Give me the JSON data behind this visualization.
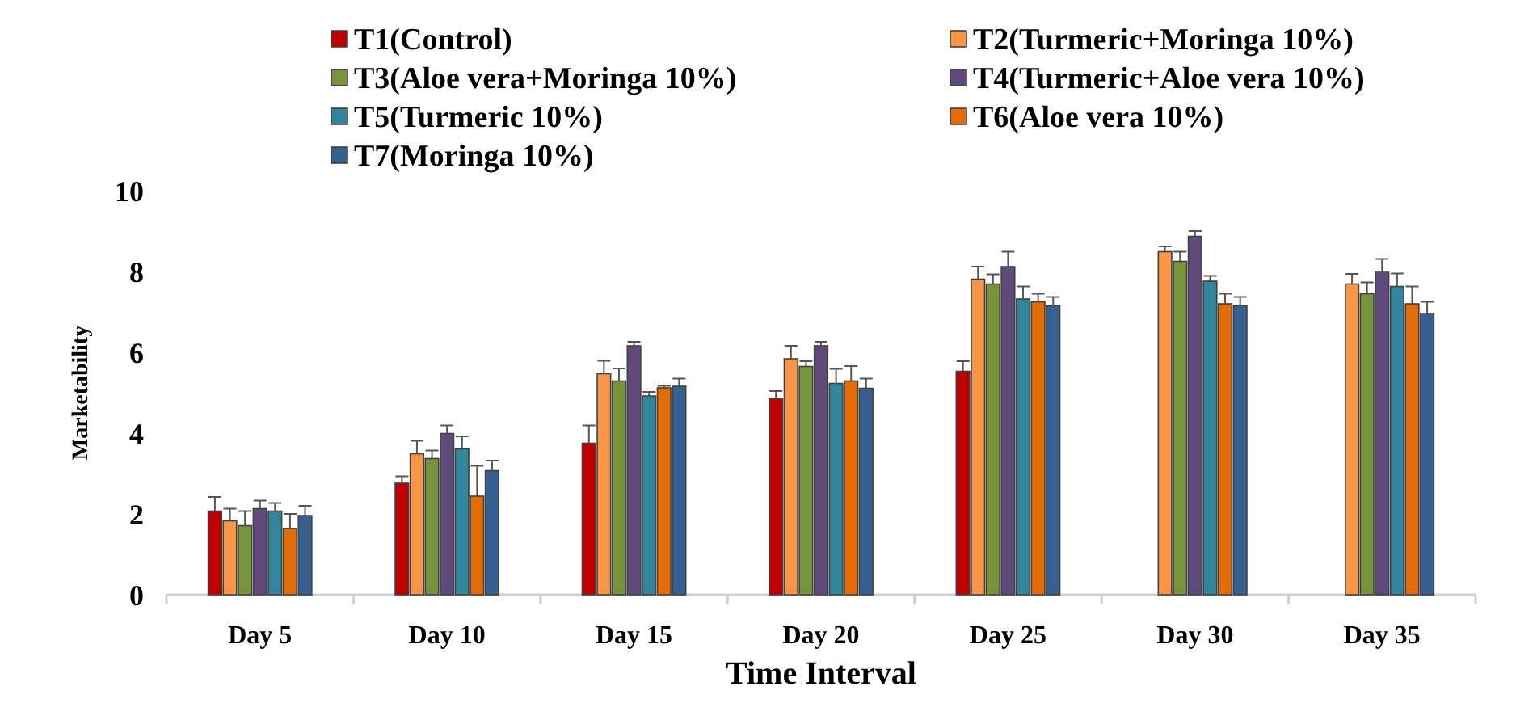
{
  "chart_data": {
    "type": "bar",
    "xlabel": "Time Interval",
    "ylabel": "Marketability",
    "categories": [
      "Day 5",
      "Day 10",
      "Day 15",
      "Day 20",
      "Day 25",
      "Day 30",
      "Day 35"
    ],
    "ylim": [
      0,
      10
    ],
    "yticks": [
      0,
      2,
      4,
      6,
      8,
      10
    ],
    "grid": false,
    "legend": "top",
    "series": [
      {
        "name": "T1(Control)",
        "color": "#c00000",
        "values": [
          2.07,
          2.76,
          3.75,
          4.85,
          5.53,
          null,
          null
        ],
        "errors": [
          0.35,
          0.17,
          0.44,
          0.19,
          0.25,
          null,
          null
        ]
      },
      {
        "name": "T2(Turmeric+Moringa 10%)",
        "color": "#f79646",
        "values": [
          1.83,
          3.49,
          5.47,
          5.84,
          7.81,
          8.49,
          7.69
        ],
        "errors": [
          0.3,
          0.32,
          0.32,
          0.32,
          0.31,
          0.13,
          0.25
        ]
      },
      {
        "name": "T3(Aloe vera+Moringa 10%)",
        "color": "#77933c",
        "values": [
          1.71,
          3.37,
          5.29,
          5.65,
          7.69,
          8.25,
          7.45
        ],
        "errors": [
          0.36,
          0.2,
          0.31,
          0.13,
          0.24,
          0.24,
          0.28
        ]
      },
      {
        "name": "T4(Turmeric+Aloe vera 10%)",
        "color": "#604a7b",
        "values": [
          2.13,
          3.99,
          6.16,
          6.16,
          8.12,
          8.87,
          8.0
        ],
        "errors": [
          0.2,
          0.2,
          0.1,
          0.1,
          0.37,
          0.13,
          0.31
        ]
      },
      {
        "name": "T5(Turmeric 10%)",
        "color": "#31859c",
        "values": [
          2.07,
          3.61,
          4.92,
          5.23,
          7.32,
          7.76,
          7.63
        ],
        "errors": [
          0.2,
          0.31,
          0.1,
          0.36,
          0.31,
          0.13,
          0.32
        ]
      },
      {
        "name": "T6(Aloe vera 10%)",
        "color": "#e36c09",
        "values": [
          1.64,
          2.44,
          5.12,
          5.29,
          7.25,
          7.2,
          7.2
        ],
        "errors": [
          0.36,
          0.75,
          0.05,
          0.37,
          0.2,
          0.25,
          0.43
        ]
      },
      {
        "name": "T7(Moringa 10%)",
        "color": "#366092",
        "values": [
          1.96,
          3.07,
          5.16,
          5.11,
          7.15,
          7.15,
          6.96
        ],
        "errors": [
          0.24,
          0.25,
          0.19,
          0.24,
          0.22,
          0.22,
          0.29
        ]
      }
    ]
  }
}
